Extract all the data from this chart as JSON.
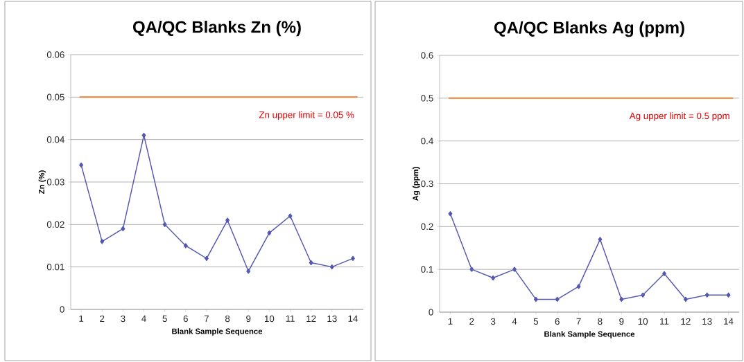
{
  "chart_data": [
    {
      "type": "line",
      "title": "QA/QC Blanks Zn (%)",
      "xlabel": "Blank Sample Sequence",
      "ylabel": "Zn (%)",
      "categories": [
        "1",
        "2",
        "3",
        "4",
        "5",
        "6",
        "7",
        "8",
        "9",
        "10",
        "11",
        "12",
        "13",
        "14"
      ],
      "series": [
        {
          "color": "#5558b0",
          "values": [
            0.034,
            0.016,
            0.019,
            0.041,
            0.02,
            0.015,
            0.012,
            0.021,
            0.009,
            0.018,
            0.022,
            0.011,
            0.01,
            0.012
          ]
        }
      ],
      "ylim": [
        0,
        0.06
      ],
      "yticks": [
        0,
        0.01,
        0.02,
        0.03,
        0.04,
        0.05,
        0.06
      ],
      "grid": "y",
      "marker": "diamond",
      "ref_lines": [
        {
          "axis": "y",
          "value": 0.05,
          "label": "Zn upper limit = 0.05 %",
          "color": "#ed7d31"
        }
      ]
    },
    {
      "type": "line",
      "title": "QA/QC Blanks Ag (ppm)",
      "xlabel": "Blank Sample Sequence",
      "ylabel": "Ag (ppm)",
      "categories": [
        "1",
        "2",
        "3",
        "4",
        "5",
        "6",
        "7",
        "8",
        "9",
        "10",
        "11",
        "12",
        "13",
        "14"
      ],
      "series": [
        {
          "color": "#5558b0",
          "values": [
            0.23,
            0.1,
            0.08,
            0.1,
            0.03,
            0.03,
            0.06,
            0.17,
            0.03,
            0.04,
            0.09,
            0.03,
            0.04,
            0.04
          ]
        }
      ],
      "ylim": [
        0,
        0.6
      ],
      "yticks": [
        0,
        0.1,
        0.2,
        0.3,
        0.4,
        0.5,
        0.6
      ],
      "grid": "y",
      "marker": "diamond",
      "ref_lines": [
        {
          "axis": "y",
          "value": 0.5,
          "label": "Ag upper limit = 0.5 ppm",
          "color": "#ed7d31"
        }
      ]
    }
  ]
}
